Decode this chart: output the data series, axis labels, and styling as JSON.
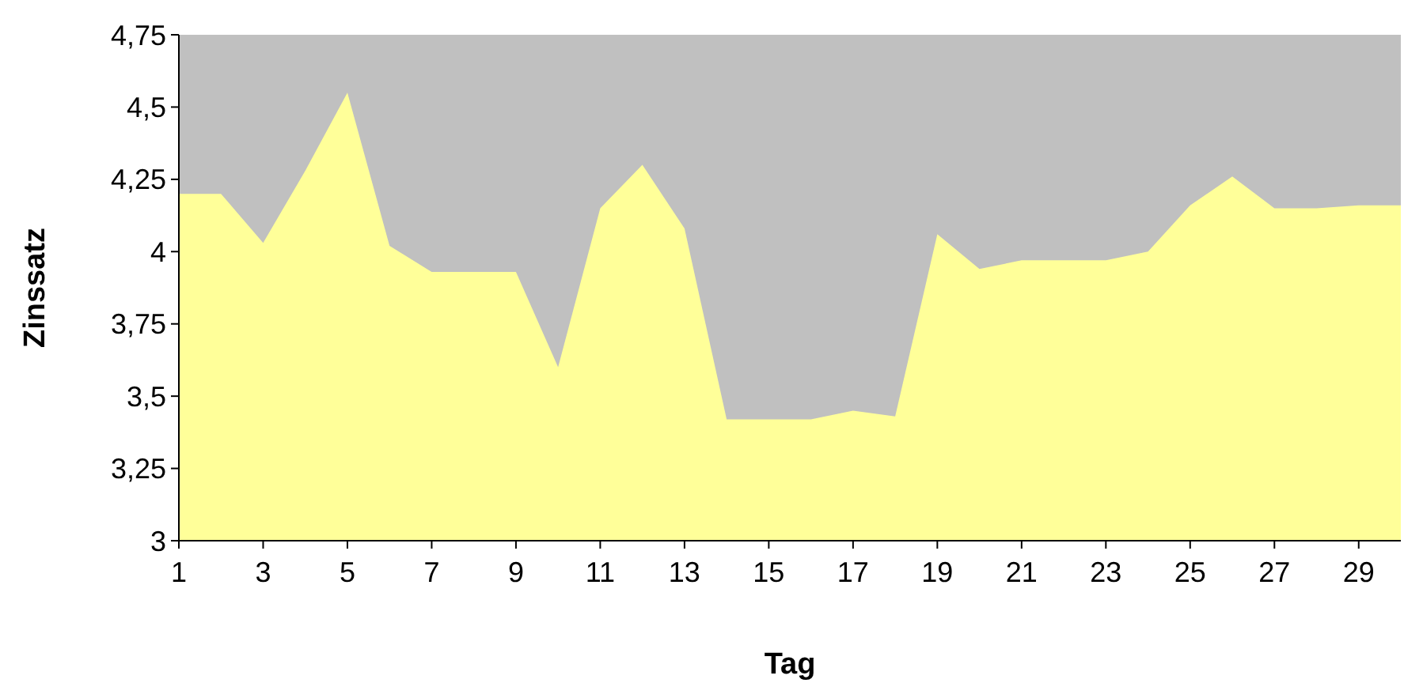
{
  "chart_data": {
    "type": "area",
    "xlabel": "Tag",
    "ylabel": "Zinssatz",
    "x": [
      1,
      2,
      3,
      4,
      5,
      6,
      7,
      8,
      9,
      10,
      11,
      12,
      13,
      14,
      15,
      16,
      17,
      18,
      19,
      20,
      21,
      22,
      23,
      24,
      25,
      26,
      27,
      28,
      29,
      30
    ],
    "series": [
      {
        "color": "#ffff99",
        "values": [
          4.2,
          4.2,
          4.03,
          4.28,
          4.55,
          4.02,
          3.93,
          3.93,
          3.93,
          3.6,
          4.15,
          4.3,
          4.08,
          3.42,
          3.42,
          3.42,
          3.45,
          3.43,
          4.06,
          3.94,
          3.97,
          3.97,
          3.97,
          4.0,
          4.16,
          4.26,
          4.15,
          4.15,
          4.16,
          4.16
        ]
      }
    ],
    "xlim": [
      1,
      30
    ],
    "xticks": [
      1,
      3,
      5,
      7,
      9,
      11,
      13,
      15,
      17,
      19,
      21,
      23,
      25,
      27,
      29
    ],
    "ylim": [
      3,
      4.75
    ],
    "yticks": [
      {
        "value": 3,
        "label": "3"
      },
      {
        "value": 3.25,
        "label": "3,25"
      },
      {
        "value": 3.5,
        "label": "3,5"
      },
      {
        "value": 3.75,
        "label": "3,75"
      },
      {
        "value": 4,
        "label": "4"
      },
      {
        "value": 4.25,
        "label": "4,25"
      },
      {
        "value": 4.5,
        "label": "4,5"
      },
      {
        "value": 4.75,
        "label": "4,75"
      }
    ],
    "grid": false
  }
}
